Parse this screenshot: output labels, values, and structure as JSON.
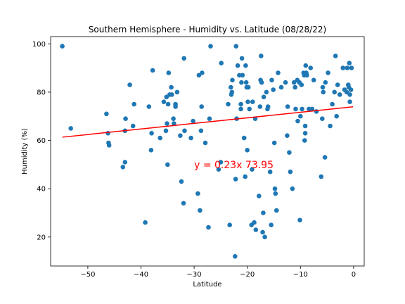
{
  "chart_data": {
    "type": "scatter",
    "title": "Southern Hemisphere - Humidity vs. Latitude (08/28/22)",
    "xlabel": "Latitude",
    "ylabel": "Humidity (%)",
    "xlim": [
      -57,
      2
    ],
    "ylim": [
      8,
      103
    ],
    "xticks": [
      -50,
      -40,
      -30,
      -20,
      -10,
      0
    ],
    "yticks": [
      20,
      40,
      60,
      80,
      100
    ],
    "grid": false,
    "point_color": "#1f77b4",
    "line_color": "#ff0000",
    "regression": {
      "slope": 0.23,
      "intercept": 73.95,
      "x_range": [
        -54.8,
        -0.1
      ]
    },
    "annotation": {
      "text": "y = 0.23x 73.95",
      "x": -30,
      "y": 50,
      "color": "#ff0000"
    },
    "points": [
      [
        -54.8,
        99
      ],
      [
        -53.2,
        65
      ],
      [
        -46.5,
        71
      ],
      [
        -46.2,
        63
      ],
      [
        -46.1,
        59
      ],
      [
        -46.0,
        58
      ],
      [
        -43.4,
        49
      ],
      [
        -43.0,
        51
      ],
      [
        -43.0,
        64
      ],
      [
        -42.9,
        69
      ],
      [
        -42.1,
        83
      ],
      [
        -41.5,
        66
      ],
      [
        -41.3,
        75
      ],
      [
        -39.2,
        26
      ],
      [
        -38.5,
        74
      ],
      [
        -38.1,
        56
      ],
      [
        -38.0,
        63
      ],
      [
        -37.8,
        89
      ],
      [
        -36.4,
        61
      ],
      [
        -35.7,
        76
      ],
      [
        -35.3,
        64
      ],
      [
        -35.2,
        78
      ],
      [
        -35.1,
        67
      ],
      [
        -35.0,
        50
      ],
      [
        -34.9,
        75
      ],
      [
        -34.8,
        88
      ],
      [
        -34.6,
        79
      ],
      [
        -34.3,
        82
      ],
      [
        -34.2,
        79
      ],
      [
        -33.9,
        69
      ],
      [
        -33.8,
        67
      ],
      [
        -33.5,
        74
      ],
      [
        -33.5,
        75
      ],
      [
        -33.2,
        80
      ],
      [
        -32.6,
        62
      ],
      [
        -32.4,
        43
      ],
      [
        -32.0,
        34
      ],
      [
        -31.9,
        94
      ],
      [
        -31.8,
        64
      ],
      [
        -30.6,
        61
      ],
      [
        -30.2,
        68
      ],
      [
        -29.3,
        38
      ],
      [
        -29.1,
        87
      ],
      [
        -28.9,
        31
      ],
      [
        -28.7,
        64
      ],
      [
        -28.6,
        74
      ],
      [
        -28.5,
        88
      ],
      [
        -27.9,
        59
      ],
      [
        -27.3,
        24
      ],
      [
        -27.1,
        69
      ],
      [
        -26.9,
        99
      ],
      [
        -25.4,
        48
      ],
      [
        -25.0,
        51
      ],
      [
        -24.9,
        92
      ],
      [
        -23.6,
        75
      ],
      [
        -23.3,
        25
      ],
      [
        -23.1,
        82
      ],
      [
        -23.0,
        79
      ],
      [
        -22.9,
        80
      ],
      [
        -22.8,
        85
      ],
      [
        -22.3,
        12
      ],
      [
        -22.2,
        44
      ],
      [
        -22.1,
        99
      ],
      [
        -22.0,
        69
      ],
      [
        -21.8,
        91
      ],
      [
        -21.5,
        87
      ],
      [
        -21.2,
        73
      ],
      [
        -21.2,
        75
      ],
      [
        -21.1,
        84
      ],
      [
        -21.0,
        94
      ],
      [
        -20.9,
        87
      ],
      [
        -20.6,
        61
      ],
      [
        -20.4,
        45
      ],
      [
        -20.3,
        91
      ],
      [
        -20.2,
        84
      ],
      [
        -20.1,
        82
      ],
      [
        -20.0,
        56
      ],
      [
        -19.9,
        76
      ],
      [
        -19.8,
        82
      ],
      [
        -19.6,
        73
      ],
      [
        -19.2,
        25
      ],
      [
        -19.1,
        48
      ],
      [
        -19.0,
        76
      ],
      [
        -18.7,
        26
      ],
      [
        -18.5,
        69
      ],
      [
        -18.4,
        23
      ],
      [
        -17.8,
        37
      ],
      [
        -17.6,
        74
      ],
      [
        -17.5,
        85
      ],
      [
        -17.4,
        95
      ],
      [
        -17.3,
        84
      ],
      [
        -17.1,
        22
      ],
      [
        -17.0,
        30
      ],
      [
        -16.9,
        78
      ],
      [
        -16.7,
        20
      ],
      [
        -16.4,
        80
      ],
      [
        -16.2,
        73
      ],
      [
        -16.1,
        74
      ],
      [
        -15.7,
        47
      ],
      [
        -15.5,
        25
      ],
      [
        -15.4,
        85
      ],
      [
        -15.1,
        81
      ],
      [
        -14.9,
        59
      ],
      [
        -14.8,
        40
      ],
      [
        -14.7,
        38
      ],
      [
        -14.5,
        31
      ],
      [
        -14.2,
        88
      ],
      [
        -13.6,
        82
      ],
      [
        -12.8,
        84
      ],
      [
        -12.5,
        62
      ],
      [
        -12.4,
        74
      ],
      [
        -12.1,
        55
      ],
      [
        -11.9,
        47
      ],
      [
        -11.5,
        40
      ],
      [
        -11.2,
        84
      ],
      [
        -11.0,
        82
      ],
      [
        -10.9,
        73
      ],
      [
        -10.6,
        85
      ],
      [
        -10.5,
        68
      ],
      [
        -10.2,
        84
      ],
      [
        -10.1,
        27
      ],
      [
        -10.0,
        70
      ],
      [
        -9.8,
        83
      ],
      [
        -9.7,
        73
      ],
      [
        -9.4,
        88
      ],
      [
        -9.3,
        87
      ],
      [
        -9.2,
        60
      ],
      [
        -9.1,
        63
      ],
      [
        -9.1,
        66
      ],
      [
        -9.0,
        91
      ],
      [
        -8.9,
        88
      ],
      [
        -8.8,
        87
      ],
      [
        -8.4,
        73
      ],
      [
        -8.1,
        90
      ],
      [
        -7.8,
        73
      ],
      [
        -7.5,
        85
      ],
      [
        -7.0,
        72
      ],
      [
        -6.1,
        45
      ],
      [
        -5.9,
        69
      ],
      [
        -5.8,
        82
      ],
      [
        -5.7,
        80
      ],
      [
        -5.4,
        53
      ],
      [
        -5.3,
        84
      ],
      [
        -4.8,
        88
      ],
      [
        -4.4,
        66
      ],
      [
        -4.0,
        75
      ],
      [
        -3.6,
        80
      ],
      [
        -3.4,
        95
      ],
      [
        -3.2,
        70
      ],
      [
        -3.0,
        83
      ],
      [
        -2.6,
        79
      ],
      [
        -2.0,
        90
      ],
      [
        -1.7,
        81
      ],
      [
        -1.3,
        80
      ],
      [
        -1.2,
        90
      ],
      [
        -1.0,
        83
      ],
      [
        -0.9,
        82
      ],
      [
        -0.8,
        92
      ],
      [
        -0.7,
        79
      ],
      [
        -0.7,
        76
      ],
      [
        -0.5,
        81
      ],
      [
        -0.4,
        90
      ]
    ]
  }
}
